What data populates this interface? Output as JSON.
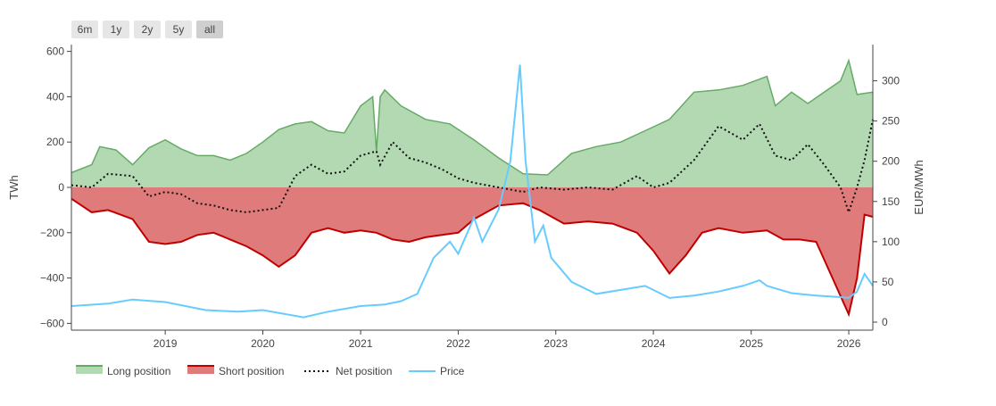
{
  "toolbar": {
    "range_buttons": [
      {
        "label": "6m",
        "active": false
      },
      {
        "label": "1y",
        "active": false
      },
      {
        "label": "2y",
        "active": false
      },
      {
        "label": "5y",
        "active": false
      },
      {
        "label": "all",
        "active": true
      }
    ]
  },
  "chart_data": {
    "type": "area",
    "x_axis": {
      "ticks": [
        "2019",
        "2020",
        "2021",
        "2022",
        "2023",
        "2024",
        "2025",
        "2026"
      ],
      "range": [
        "2018-01-15",
        "2026-04-01"
      ]
    },
    "y_axis_left": {
      "title": "TWh",
      "range": [
        -630,
        630
      ],
      "ticks": [
        600,
        400,
        200,
        0,
        -200,
        -400,
        -600
      ],
      "tick_labels": [
        "600",
        "400",
        "200",
        "0",
        "−200",
        "−400",
        "−600"
      ]
    },
    "y_axis_right": {
      "title": "EUR/MWh",
      "range": [
        -10,
        345
      ],
      "ticks": [
        300,
        250,
        200,
        150,
        100,
        50,
        0
      ],
      "tick_labels": [
        "300",
        "250",
        "200",
        "150",
        "100",
        "50",
        "0"
      ]
    },
    "colors": {
      "long_fill": "#b3d9b3",
      "long_line": "#66aa66",
      "short_fill": "#e07b7b",
      "short_line": "#c00000",
      "net_line": "#111111",
      "price_line": "#66ccff"
    },
    "legend": {
      "placement": "bottom-left",
      "items": [
        {
          "label": "Long position",
          "kind": "long"
        },
        {
          "label": "Short position",
          "kind": "short"
        },
        {
          "label": "Net position",
          "kind": "net"
        },
        {
          "label": "Price",
          "kind": "price"
        }
      ]
    },
    "series": [
      {
        "name": "Long position",
        "axis": "left",
        "points": [
          [
            "2018-01-15",
            65
          ],
          [
            "2018-04-01",
            100
          ],
          [
            "2018-05-01",
            180
          ],
          [
            "2018-07-01",
            165
          ],
          [
            "2018-09-01",
            100
          ],
          [
            "2018-11-01",
            175
          ],
          [
            "2019-01-01",
            210
          ],
          [
            "2019-03-01",
            170
          ],
          [
            "2019-05-01",
            140
          ],
          [
            "2019-07-01",
            140
          ],
          [
            "2019-09-01",
            120
          ],
          [
            "2019-11-01",
            150
          ],
          [
            "2020-01-01",
            200
          ],
          [
            "2020-03-01",
            255
          ],
          [
            "2020-05-01",
            280
          ],
          [
            "2020-07-01",
            290
          ],
          [
            "2020-09-01",
            250
          ],
          [
            "2020-11-01",
            240
          ],
          [
            "2021-01-01",
            360
          ],
          [
            "2021-02-15",
            400
          ],
          [
            "2021-03-01",
            160
          ],
          [
            "2021-03-15",
            400
          ],
          [
            "2021-04-01",
            430
          ],
          [
            "2021-06-01",
            360
          ],
          [
            "2021-09-01",
            300
          ],
          [
            "2021-12-01",
            280
          ],
          [
            "2022-03-01",
            210
          ],
          [
            "2022-06-01",
            130
          ],
          [
            "2022-09-01",
            60
          ],
          [
            "2022-12-01",
            55
          ],
          [
            "2023-03-01",
            150
          ],
          [
            "2023-06-01",
            180
          ],
          [
            "2023-09-01",
            200
          ],
          [
            "2023-12-01",
            250
          ],
          [
            "2024-03-01",
            300
          ],
          [
            "2024-06-01",
            420
          ],
          [
            "2024-09-01",
            430
          ],
          [
            "2024-12-01",
            450
          ],
          [
            "2025-03-01",
            490
          ],
          [
            "2025-04-01",
            360
          ],
          [
            "2025-06-01",
            420
          ],
          [
            "2025-08-01",
            370
          ],
          [
            "2025-10-01",
            420
          ],
          [
            "2025-12-01",
            470
          ],
          [
            "2026-01-01",
            560
          ],
          [
            "2026-02-01",
            410
          ],
          [
            "2026-04-01",
            420
          ]
        ]
      },
      {
        "name": "Short position",
        "axis": "left",
        "points": [
          [
            "2018-01-15",
            -50
          ],
          [
            "2018-04-01",
            -110
          ],
          [
            "2018-06-01",
            -100
          ],
          [
            "2018-09-01",
            -140
          ],
          [
            "2018-11-01",
            -240
          ],
          [
            "2019-01-01",
            -250
          ],
          [
            "2019-03-01",
            -240
          ],
          [
            "2019-05-01",
            -210
          ],
          [
            "2019-07-01",
            -200
          ],
          [
            "2019-09-01",
            -230
          ],
          [
            "2019-11-01",
            -260
          ],
          [
            "2020-01-01",
            -300
          ],
          [
            "2020-03-01",
            -350
          ],
          [
            "2020-05-01",
            -300
          ],
          [
            "2020-07-01",
            -200
          ],
          [
            "2020-09-01",
            -180
          ],
          [
            "2020-11-01",
            -200
          ],
          [
            "2021-01-01",
            -190
          ],
          [
            "2021-03-01",
            -200
          ],
          [
            "2021-05-01",
            -230
          ],
          [
            "2021-07-01",
            -240
          ],
          [
            "2021-09-01",
            -220
          ],
          [
            "2021-11-01",
            -210
          ],
          [
            "2022-01-01",
            -200
          ],
          [
            "2022-03-01",
            -140
          ],
          [
            "2022-06-01",
            -80
          ],
          [
            "2022-09-01",
            -70
          ],
          [
            "2022-11-01",
            -100
          ],
          [
            "2023-02-01",
            -160
          ],
          [
            "2023-05-01",
            -150
          ],
          [
            "2023-08-01",
            -160
          ],
          [
            "2023-11-01",
            -200
          ],
          [
            "2024-01-01",
            -280
          ],
          [
            "2024-03-01",
            -380
          ],
          [
            "2024-05-01",
            -300
          ],
          [
            "2024-07-01",
            -200
          ],
          [
            "2024-09-01",
            -180
          ],
          [
            "2024-12-01",
            -200
          ],
          [
            "2025-03-01",
            -190
          ],
          [
            "2025-05-01",
            -230
          ],
          [
            "2025-07-01",
            -230
          ],
          [
            "2025-09-01",
            -240
          ],
          [
            "2025-11-01",
            -400
          ],
          [
            "2026-01-01",
            -560
          ],
          [
            "2026-02-01",
            -400
          ],
          [
            "2026-03-01",
            -120
          ],
          [
            "2026-04-01",
            -130
          ]
        ]
      },
      {
        "name": "Net position",
        "axis": "left",
        "points": [
          [
            "2018-01-15",
            10
          ],
          [
            "2018-04-01",
            0
          ],
          [
            "2018-06-01",
            60
          ],
          [
            "2018-09-01",
            50
          ],
          [
            "2018-11-01",
            -40
          ],
          [
            "2019-01-01",
            -20
          ],
          [
            "2019-03-01",
            -30
          ],
          [
            "2019-05-01",
            -70
          ],
          [
            "2019-07-01",
            -80
          ],
          [
            "2019-09-01",
            -100
          ],
          [
            "2019-11-01",
            -110
          ],
          [
            "2020-01-01",
            -100
          ],
          [
            "2020-03-01",
            -90
          ],
          [
            "2020-05-01",
            50
          ],
          [
            "2020-07-01",
            100
          ],
          [
            "2020-09-01",
            60
          ],
          [
            "2020-11-01",
            70
          ],
          [
            "2021-01-01",
            140
          ],
          [
            "2021-03-01",
            160
          ],
          [
            "2021-03-15",
            100
          ],
          [
            "2021-05-01",
            200
          ],
          [
            "2021-07-01",
            130
          ],
          [
            "2021-09-01",
            110
          ],
          [
            "2021-11-01",
            80
          ],
          [
            "2022-01-01",
            40
          ],
          [
            "2022-03-01",
            20
          ],
          [
            "2022-06-01",
            0
          ],
          [
            "2022-09-01",
            -20
          ],
          [
            "2022-11-01",
            0
          ],
          [
            "2023-02-01",
            -10
          ],
          [
            "2023-05-01",
            0
          ],
          [
            "2023-08-01",
            -10
          ],
          [
            "2023-11-01",
            50
          ],
          [
            "2024-01-01",
            0
          ],
          [
            "2024-03-01",
            20
          ],
          [
            "2024-06-01",
            120
          ],
          [
            "2024-09-01",
            270
          ],
          [
            "2024-12-01",
            210
          ],
          [
            "2025-02-01",
            280
          ],
          [
            "2025-04-01",
            140
          ],
          [
            "2025-06-01",
            120
          ],
          [
            "2025-08-01",
            190
          ],
          [
            "2025-10-01",
            100
          ],
          [
            "2025-12-01",
            0
          ],
          [
            "2026-01-01",
            -110
          ],
          [
            "2026-02-01",
            0
          ],
          [
            "2026-03-01",
            120
          ],
          [
            "2026-04-01",
            300
          ]
        ]
      },
      {
        "name": "Price",
        "axis": "right",
        "points": [
          [
            "2018-01-15",
            20
          ],
          [
            "2018-06-01",
            23
          ],
          [
            "2018-09-01",
            28
          ],
          [
            "2019-01-01",
            25
          ],
          [
            "2019-06-01",
            15
          ],
          [
            "2019-10-01",
            13
          ],
          [
            "2020-01-01",
            15
          ],
          [
            "2020-06-01",
            6
          ],
          [
            "2020-09-01",
            13
          ],
          [
            "2021-01-01",
            20
          ],
          [
            "2021-04-01",
            22
          ],
          [
            "2021-06-01",
            26
          ],
          [
            "2021-08-01",
            35
          ],
          [
            "2021-10-01",
            80
          ],
          [
            "2021-12-01",
            100
          ],
          [
            "2022-01-01",
            85
          ],
          [
            "2022-03-01",
            130
          ],
          [
            "2022-04-01",
            100
          ],
          [
            "2022-06-01",
            140
          ],
          [
            "2022-07-15",
            200
          ],
          [
            "2022-08-20",
            320
          ],
          [
            "2022-09-10",
            200
          ],
          [
            "2022-10-15",
            100
          ],
          [
            "2022-11-15",
            120
          ],
          [
            "2022-12-15",
            80
          ],
          [
            "2023-03-01",
            50
          ],
          [
            "2023-06-01",
            35
          ],
          [
            "2023-09-01",
            40
          ],
          [
            "2023-12-01",
            45
          ],
          [
            "2024-03-01",
            30
          ],
          [
            "2024-06-01",
            33
          ],
          [
            "2024-09-01",
            38
          ],
          [
            "2024-12-01",
            45
          ],
          [
            "2025-02-01",
            52
          ],
          [
            "2025-03-01",
            45
          ],
          [
            "2025-06-01",
            36
          ],
          [
            "2025-09-01",
            33
          ],
          [
            "2025-12-01",
            31
          ],
          [
            "2026-01-01",
            30
          ],
          [
            "2026-02-01",
            38
          ],
          [
            "2026-03-01",
            60
          ],
          [
            "2026-04-01",
            45
          ]
        ]
      }
    ]
  }
}
